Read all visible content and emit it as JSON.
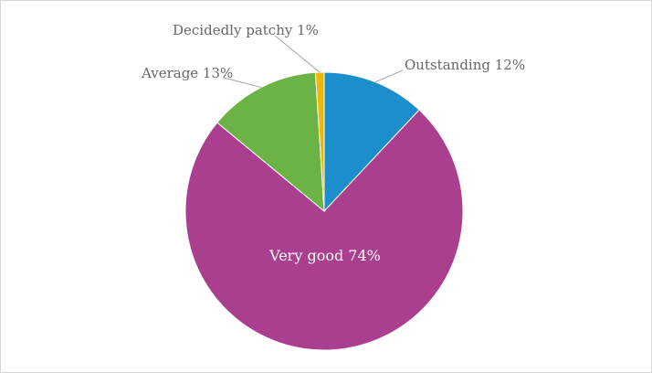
{
  "chart_data": {
    "type": "pie",
    "title": "",
    "categories": [
      "Outstanding",
      "Very good",
      "Average",
      "Decidedly patchy"
    ],
    "values": [
      12,
      74,
      13,
      1
    ],
    "value_unit": "%",
    "data_labels": [
      "Outstanding 12%",
      "Very good 74%",
      "Average 13%",
      "Decidedly patchy 1%"
    ],
    "colors": [
      "#1b8ecb",
      "#ab3f8f",
      "#6bb345",
      "#f2b705"
    ],
    "legend": "none",
    "start_angle_deg": 0,
    "direction": "clockwise"
  }
}
